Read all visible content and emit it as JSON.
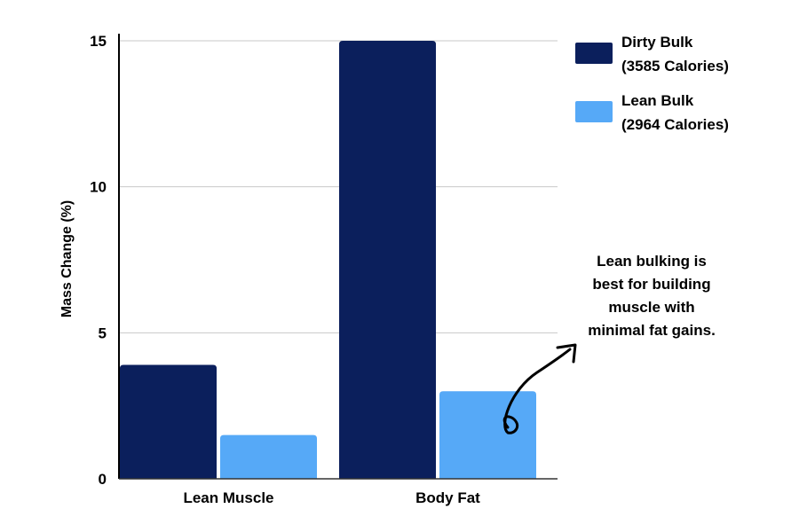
{
  "chart_data": {
    "type": "bar",
    "categories": [
      "Lean Muscle",
      "Body Fat"
    ],
    "series": [
      {
        "name": "Dirty Bulk (3585 Calories)",
        "legend_lines": [
          "Dirty Bulk",
          "(3585 Calories)"
        ],
        "color": "#0b1f5c",
        "values": [
          3.9,
          15.0
        ]
      },
      {
        "name": "Lean Bulk (2964 Calories)",
        "legend_lines": [
          "Lean Bulk",
          "(2964 Calories)"
        ],
        "color": "#56a9f7",
        "values": [
          1.5,
          3.0
        ]
      }
    ],
    "ylabel": "Mass Change (%)",
    "xlabel": "",
    "ylim": [
      0,
      15
    ],
    "yticks": [
      0,
      5,
      10,
      15
    ],
    "grid": true,
    "legend_position": "top-right",
    "annotation": {
      "lines": [
        "Lean bulking is",
        "best for building",
        "muscle  with",
        "minimal fat gains."
      ]
    }
  }
}
